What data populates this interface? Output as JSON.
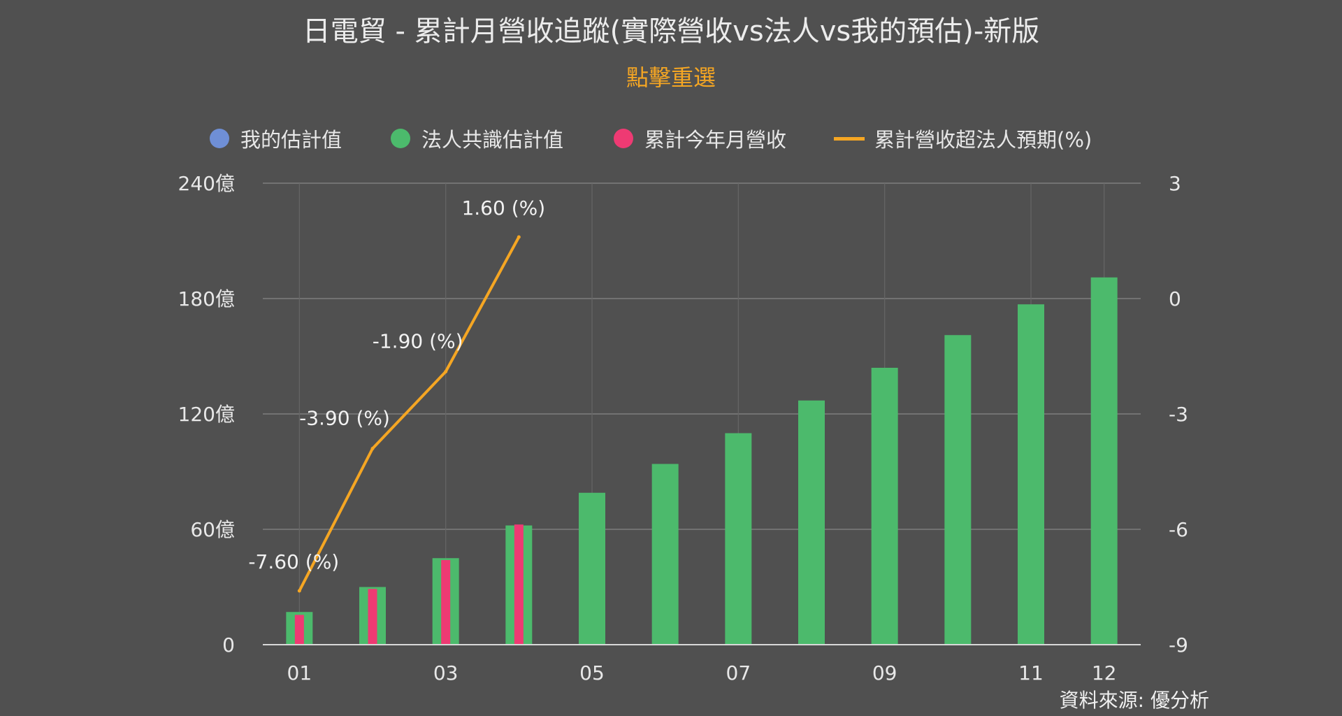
{
  "title": "日電貿 - 累計月營收追蹤(實際營收vs法人vs我的預估)-新版",
  "reset_label": "點擊重選",
  "source": "資料來源: 優分析",
  "colors": {
    "background": "#505050",
    "my_estimate": "#6f8fd6",
    "consensus": "#4cba6c",
    "actual": "#ee3a73",
    "excess_line": "#f5a623",
    "grid": "#7e7e7e",
    "text": "#e8e8e8"
  },
  "legend": [
    {
      "label": "我的估計值",
      "kind": "dot",
      "color_key": "my_estimate"
    },
    {
      "label": "法人共識估計值",
      "kind": "dot",
      "color_key": "consensus"
    },
    {
      "label": "累計今年月營收",
      "kind": "dot",
      "color_key": "actual"
    },
    {
      "label": "累計營收超法人預期(%)",
      "kind": "line",
      "color_key": "excess_line"
    }
  ],
  "chart_data": {
    "type": "bar",
    "categories": [
      "01",
      "02",
      "03",
      "04",
      "05",
      "06",
      "07",
      "08",
      "09",
      "10",
      "11",
      "12"
    ],
    "x_tick_labels": [
      "01",
      "",
      "03",
      "",
      "05",
      "",
      "07",
      "",
      "09",
      "",
      "11",
      "12"
    ],
    "y_left": {
      "min": 0,
      "max": 240,
      "ticks": [
        0,
        60,
        120,
        180,
        240
      ],
      "tick_labels": [
        "0",
        "60億",
        "120億",
        "180億",
        "240億"
      ]
    },
    "y_right": {
      "min": -9,
      "max": 3,
      "ticks": [
        -9,
        -6,
        -3,
        0,
        3
      ],
      "tick_labels": [
        "-9",
        "-6",
        "-3",
        "0",
        "3"
      ]
    },
    "grid": true,
    "legend_position": "top",
    "series": [
      {
        "name": "法人共識估計值",
        "type": "bar",
        "axis": "left",
        "color_key": "consensus",
        "values": [
          17,
          30,
          45,
          62,
          79,
          94,
          110,
          127,
          144,
          161,
          177,
          191
        ]
      },
      {
        "name": "累計今年月營收",
        "type": "bar",
        "axis": "left",
        "color_key": "actual",
        "values": [
          15.5,
          29,
          44,
          62.5,
          null,
          null,
          null,
          null,
          null,
          null,
          null,
          null
        ]
      },
      {
        "name": "累計營收超法人預期(%)",
        "type": "line",
        "axis": "right",
        "color_key": "excess_line",
        "values": [
          -7.6,
          -3.9,
          -1.9,
          1.6,
          null,
          null,
          null,
          null,
          null,
          null,
          null,
          null
        ],
        "data_labels": [
          "-7.60 (%)",
          "-3.90 (%)",
          "-1.90 (%)",
          "1.60 (%)",
          "",
          "",
          "",
          "",
          "",
          "",
          "",
          ""
        ]
      },
      {
        "name": "我的估計值",
        "type": "bar",
        "axis": "left",
        "color_key": "my_estimate",
        "values": [
          null,
          null,
          null,
          null,
          null,
          null,
          null,
          null,
          null,
          null,
          null,
          null
        ]
      }
    ]
  }
}
